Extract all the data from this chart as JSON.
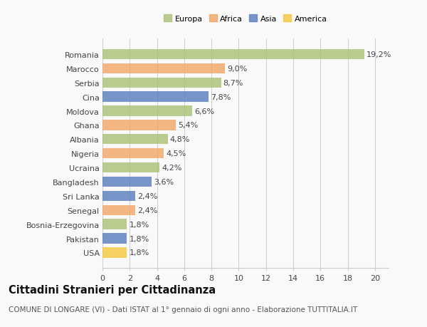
{
  "countries": [
    "Romania",
    "Marocco",
    "Serbia",
    "Cina",
    "Moldova",
    "Ghana",
    "Albania",
    "Nigeria",
    "Ucraina",
    "Bangladesh",
    "Sri Lanka",
    "Senegal",
    "Bosnia-Erzegovina",
    "Pakistan",
    "USA"
  ],
  "values": [
    19.2,
    9.0,
    8.7,
    7.8,
    6.6,
    5.4,
    4.8,
    4.5,
    4.2,
    3.6,
    2.4,
    2.4,
    1.8,
    1.8,
    1.8
  ],
  "labels": [
    "19,2%",
    "9,0%",
    "8,7%",
    "7,8%",
    "6,6%",
    "5,4%",
    "4,8%",
    "4,5%",
    "4,2%",
    "3,6%",
    "2,4%",
    "2,4%",
    "1,8%",
    "1,8%",
    "1,8%"
  ],
  "continents": [
    "Europa",
    "Africa",
    "Europa",
    "Asia",
    "Europa",
    "Africa",
    "Europa",
    "Africa",
    "Europa",
    "Asia",
    "Asia",
    "Africa",
    "Europa",
    "Asia",
    "America"
  ],
  "colors": {
    "Europa": "#adc178",
    "Africa": "#f0a868",
    "Asia": "#5b7fbe",
    "America": "#f5c842"
  },
  "xlim": [
    0,
    21
  ],
  "xticks": [
    0,
    2,
    4,
    6,
    8,
    10,
    12,
    14,
    16,
    18,
    20
  ],
  "title": "Cittadini Stranieri per Cittadinanza",
  "subtitle": "COMUNE DI LONGARE (VI) - Dati ISTAT al 1° gennaio di ogni anno - Elaborazione TUTTITALIA.IT",
  "background_color": "#f9f9f9",
  "bar_alpha": 0.82,
  "grid_color": "#cccccc",
  "label_fontsize": 8.0,
  "tick_fontsize": 8.0,
  "title_fontsize": 10.5,
  "subtitle_fontsize": 7.5,
  "legend_order": [
    "Europa",
    "Africa",
    "Asia",
    "America"
  ]
}
